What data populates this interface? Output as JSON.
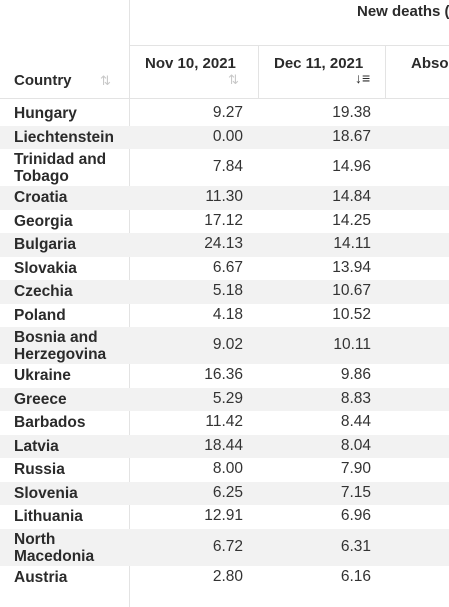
{
  "header": {
    "group_title": "New deaths (",
    "columns": {
      "country": "Country",
      "nov": "Nov 10, 2021",
      "dec": "Dec 11, 2021",
      "abs": "Abso"
    },
    "icons": {
      "country_sort": "sort-icon",
      "nov_sort": "sort-icon",
      "dec_sort": "sort-descending-icon"
    }
  },
  "rows": [
    {
      "country": [
        "Hungary"
      ],
      "nov": "9.27",
      "dec": "19.38"
    },
    {
      "country": [
        "Liechtenstein"
      ],
      "nov": "0.00",
      "dec": "18.67"
    },
    {
      "country": [
        "Trinidad and",
        "Tobago"
      ],
      "nov": "7.84",
      "dec": "14.96"
    },
    {
      "country": [
        "Croatia"
      ],
      "nov": "11.30",
      "dec": "14.84"
    },
    {
      "country": [
        "Georgia"
      ],
      "nov": "17.12",
      "dec": "14.25"
    },
    {
      "country": [
        "Bulgaria"
      ],
      "nov": "24.13",
      "dec": "14.11"
    },
    {
      "country": [
        "Slovakia"
      ],
      "nov": "6.67",
      "dec": "13.94"
    },
    {
      "country": [
        "Czechia"
      ],
      "nov": "5.18",
      "dec": "10.67"
    },
    {
      "country": [
        "Poland"
      ],
      "nov": "4.18",
      "dec": "10.52"
    },
    {
      "country": [
        "Bosnia and",
        "Herzegovina"
      ],
      "nov": "9.02",
      "dec": "10.11"
    },
    {
      "country": [
        "Ukraine"
      ],
      "nov": "16.36",
      "dec": "9.86"
    },
    {
      "country": [
        "Greece"
      ],
      "nov": "5.29",
      "dec": "8.83"
    },
    {
      "country": [
        "Barbados"
      ],
      "nov": "11.42",
      "dec": "8.44"
    },
    {
      "country": [
        "Latvia"
      ],
      "nov": "18.44",
      "dec": "8.04"
    },
    {
      "country": [
        "Russia"
      ],
      "nov": "8.00",
      "dec": "7.90"
    },
    {
      "country": [
        "Slovenia"
      ],
      "nov": "6.25",
      "dec": "7.15"
    },
    {
      "country": [
        "Lithuania"
      ],
      "nov": "12.91",
      "dec": "6.96"
    },
    {
      "country": [
        "North",
        "Macedonia"
      ],
      "nov": "6.72",
      "dec": "6.31"
    },
    {
      "country": [
        "Austria"
      ],
      "nov": "2.80",
      "dec": "6.16"
    }
  ]
}
